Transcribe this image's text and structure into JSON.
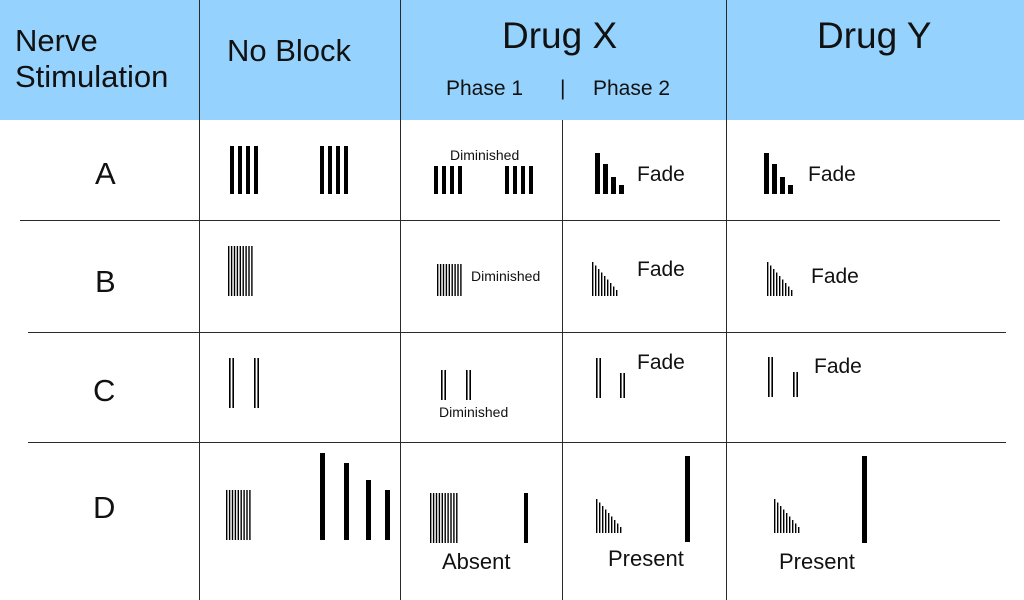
{
  "colors": {
    "header_bg": "#95d3fe",
    "line": "#2a2a2a",
    "mark": "#000000"
  },
  "header": {
    "col1_line1": "Nerve",
    "col1_line2": "Stimulation",
    "col2": "No Block",
    "col3": "Drug X",
    "col3_phase1": "Phase 1",
    "col3_sep": "|",
    "col3_phase2": "Phase 2",
    "col4": "Drug Y"
  },
  "rows": [
    {
      "label": "A",
      "phase1_note": "Diminished",
      "phase2_note": "Fade",
      "drugy_note": "Fade"
    },
    {
      "label": "B",
      "phase1_note": "Diminished",
      "phase2_note": "Fade",
      "drugy_note": "Fade"
    },
    {
      "label": "C",
      "phase1_note": "Diminished",
      "phase2_note": "Fade",
      "drugy_note": "Fade"
    },
    {
      "label": "D",
      "phase1_note": "Absent",
      "phase2_note": "Present",
      "drugy_note": "Present"
    }
  ]
}
